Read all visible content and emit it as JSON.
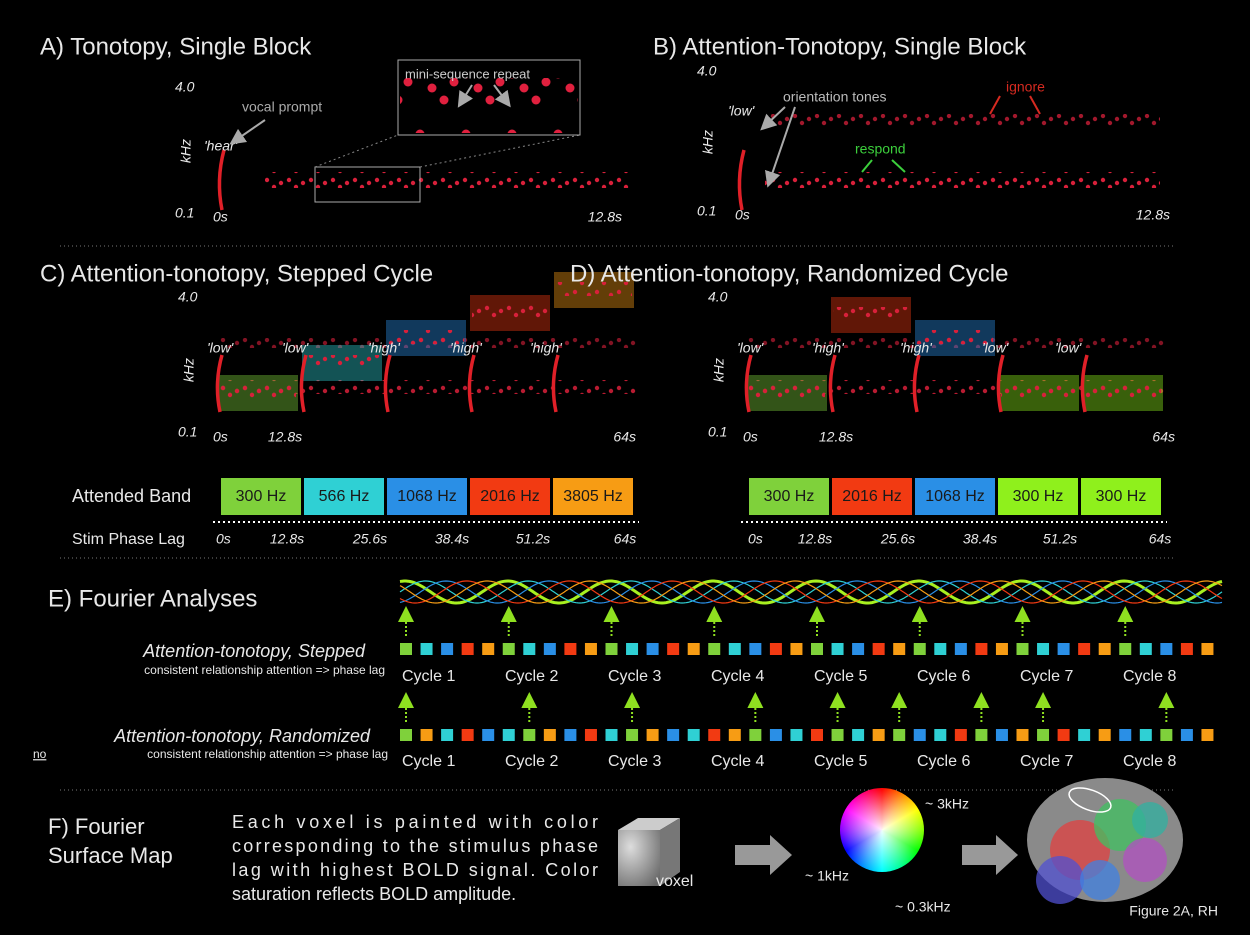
{
  "panel_a": {
    "title": "A) Tonotopy, Single Block",
    "y_top": "4.0",
    "y_label": "kHz",
    "y_bottom": "0.1",
    "x_start": "0s",
    "x_end": "12.8s",
    "prompt": "'hear'",
    "prompt_label": "vocal prompt",
    "inset_label": "mini-sequence repeat"
  },
  "panel_b": {
    "title": "B) Attention-Tonotopy, Single Block",
    "y_top": "4.0",
    "y_label": "kHz",
    "y_bottom": "0.1",
    "x_start": "0s",
    "x_end": "12.8s",
    "prompt": "'low'",
    "tones_label": "orientation tones",
    "ignore_label": "ignore",
    "respond_label": "respond"
  },
  "panel_c": {
    "title": "C) Attention-tonotopy, Stepped Cycle",
    "y_top": "4.0",
    "y_label": "kHz",
    "y_bottom": "0.1",
    "x_start": "0s",
    "x_mid": "12.8s",
    "x_end": "64s",
    "prompts": [
      "'low'",
      "'low'",
      "'high'",
      "'high'",
      "'high'"
    ],
    "band_label": "Attended Band",
    "bands": [
      {
        "label": "300 Hz",
        "color": "#7fd13b"
      },
      {
        "label": "566 Hz",
        "color": "#2fd0d4"
      },
      {
        "label": "1068 Hz",
        "color": "#2a8fe6"
      },
      {
        "label": "2016 Hz",
        "color": "#f23a12"
      },
      {
        "label": "3805 Hz",
        "color": "#f79c14"
      }
    ],
    "lag_label": "Stim Phase Lag",
    "lags": [
      "0s",
      "12.8s",
      "25.6s",
      "38.4s",
      "51.2s",
      "64s"
    ]
  },
  "panel_d": {
    "title": "D) Attention-tonotopy, Randomized Cycle",
    "y_top": "4.0",
    "y_label": "kHz",
    "y_bottom": "0.1",
    "x_start": "0s",
    "x_mid": "12.8s",
    "x_end": "64s",
    "prompts": [
      "'low'",
      "'high'",
      "'high'",
      "'low'",
      "'low'"
    ],
    "bands": [
      {
        "label": "300 Hz",
        "color": "#7fd13b"
      },
      {
        "label": "2016 Hz",
        "color": "#f23a12"
      },
      {
        "label": "1068 Hz",
        "color": "#2a8fe6"
      },
      {
        "label": "300 Hz",
        "color": "#8ff01c"
      },
      {
        "label": "300 Hz",
        "color": "#8ff01c"
      }
    ],
    "lags": [
      "0s",
      "12.8s",
      "25.6s",
      "38.4s",
      "51.2s",
      "64s"
    ]
  },
  "panel_e": {
    "title": "E) Fourier Analyses",
    "stepped": {
      "title": "Attention-tonotopy, Stepped",
      "subtitle": "consistent relationship attention => phase lag",
      "cycles": [
        "Cycle 1",
        "Cycle 2",
        "Cycle 3",
        "Cycle 4",
        "Cycle 5",
        "Cycle 6",
        "Cycle 7",
        "Cycle 8"
      ]
    },
    "randomized": {
      "title": "Attention-tonotopy, Randomized",
      "subtitle_emphasis": "no",
      "subtitle": "consistent relationship attention => phase lag",
      "cycles": [
        "Cycle 1",
        "Cycle 2",
        "Cycle 3",
        "Cycle 4",
        "Cycle 5",
        "Cycle 6",
        "Cycle 7",
        "Cycle 8"
      ]
    }
  },
  "panel_f": {
    "title_lines": [
      "F) Fourier",
      "Surface Map"
    ],
    "text_lines": [
      "Each voxel is painted with color",
      "corresponding to the stimulus phase",
      "lag with highest BOLD signal. Color",
      "saturation reflects BOLD amplitude."
    ],
    "voxel_label": "voxel",
    "wheel_high": "~ 3kHz",
    "wheel_mid": "~ 1kHz",
    "wheel_low": "~ 0.3kHz",
    "caption": "Figure 2A, RH"
  }
}
